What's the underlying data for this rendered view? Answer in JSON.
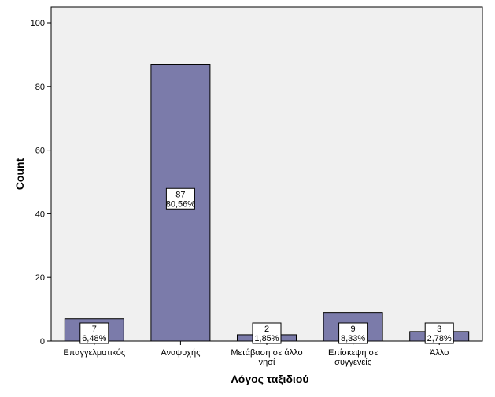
{
  "chart_data": {
    "type": "bar",
    "title": "",
    "xlabel": "Λόγος ταξιδιού",
    "ylabel": "Count",
    "ylim": [
      0,
      100
    ],
    "yticks": [
      0,
      20,
      40,
      60,
      80,
      100
    ],
    "grid": false,
    "categories": [
      [
        "Επαγγελματικός"
      ],
      [
        "Αναψυχής"
      ],
      [
        "Μετάβαση σε άλλο",
        "νησί"
      ],
      [
        "Επίσκεψη σε",
        "συγγενείς"
      ],
      [
        "Άλλο"
      ]
    ],
    "values": [
      7,
      87,
      2,
      9,
      3
    ],
    "percent_labels": [
      "6,48%",
      "80,56%",
      "1,85%",
      "8,33%",
      "2,78%"
    ]
  },
  "colors": {
    "bar_fill": "#7b7baa",
    "plot_background": "#f0f0f0",
    "axis": "#000000"
  }
}
